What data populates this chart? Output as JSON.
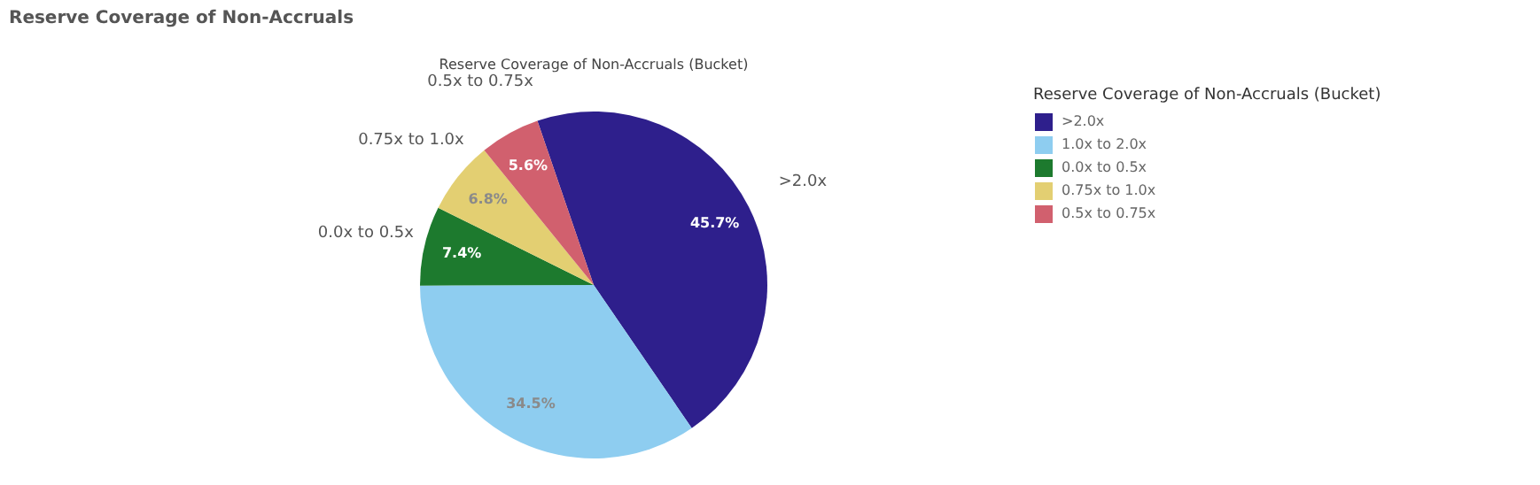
{
  "chart_data": {
    "type": "pie",
    "title": "Reserve Coverage of Non-Accruals",
    "subtitle": "Reserve Coverage of Non-Accruals (Bucket)",
    "legend_title": "Reserve Coverage of Non-Accruals (Bucket)",
    "categories": [
      ">2.0x",
      "1.0x to 2.0x",
      "0.0x to 0.5x",
      "0.75x to 1.0x",
      "0.5x to 0.75x"
    ],
    "values": [
      45.7,
      34.5,
      7.4,
      6.8,
      5.6
    ],
    "value_labels": [
      "45.7%",
      "34.5%",
      "7.4%",
      "6.8%",
      "5.6%"
    ],
    "colors": [
      "#2e1f8c",
      "#8ecdf0",
      "#1d7a2e",
      "#e3cf72",
      "#d1606e"
    ],
    "legend": "right"
  }
}
